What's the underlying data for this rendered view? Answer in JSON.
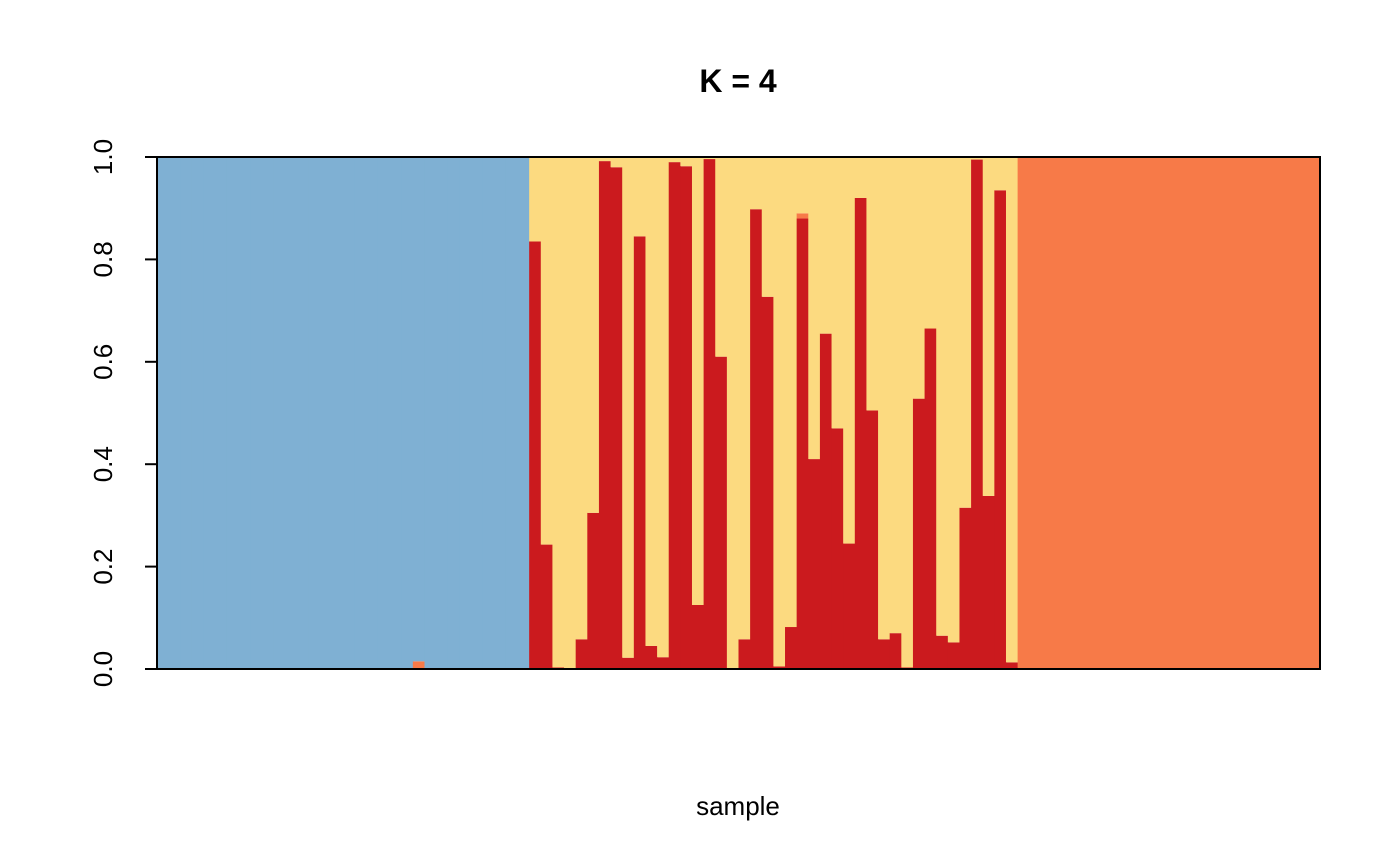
{
  "chart_data": {
    "type": "bar",
    "stacked": true,
    "title": "K = 4",
    "xlabel": "sample",
    "ylabel": "",
    "ylim": [
      0,
      1
    ],
    "yticks": [
      "0.0",
      "0.2",
      "0.4",
      "0.6",
      "0.8",
      "1.0"
    ],
    "n_samples": 100,
    "colors": [
      "#7fb0d3",
      "#cb1a1e",
      "#fcda80",
      "#f77a48"
    ],
    "blue_samples": 32,
    "red_cluster_fractions": [
      0.835,
      0.243,
      0.003,
      0.0,
      0.058,
      0.305,
      0.992,
      0.98,
      0.022,
      0.845,
      0.045,
      0.023,
      0.99,
      0.982,
      0.125,
      0.996,
      0.61,
      0.002,
      0.058,
      0.898,
      0.727,
      0.005,
      0.082,
      0.88,
      0.41,
      0.655,
      0.47,
      0.245,
      0.92,
      0.505,
      0.058,
      0.07,
      0.003,
      0.528,
      0.665,
      0.065,
      0.052,
      0.315,
      0.995,
      0.338,
      0.935,
      0.013
    ],
    "orange_caps": [
      {
        "index": 23,
        "value": 0.01
      }
    ],
    "blue_minor": [
      {
        "index": 22,
        "value": 0.015,
        "color": "orange"
      }
    ],
    "orange_samples": 26
  }
}
